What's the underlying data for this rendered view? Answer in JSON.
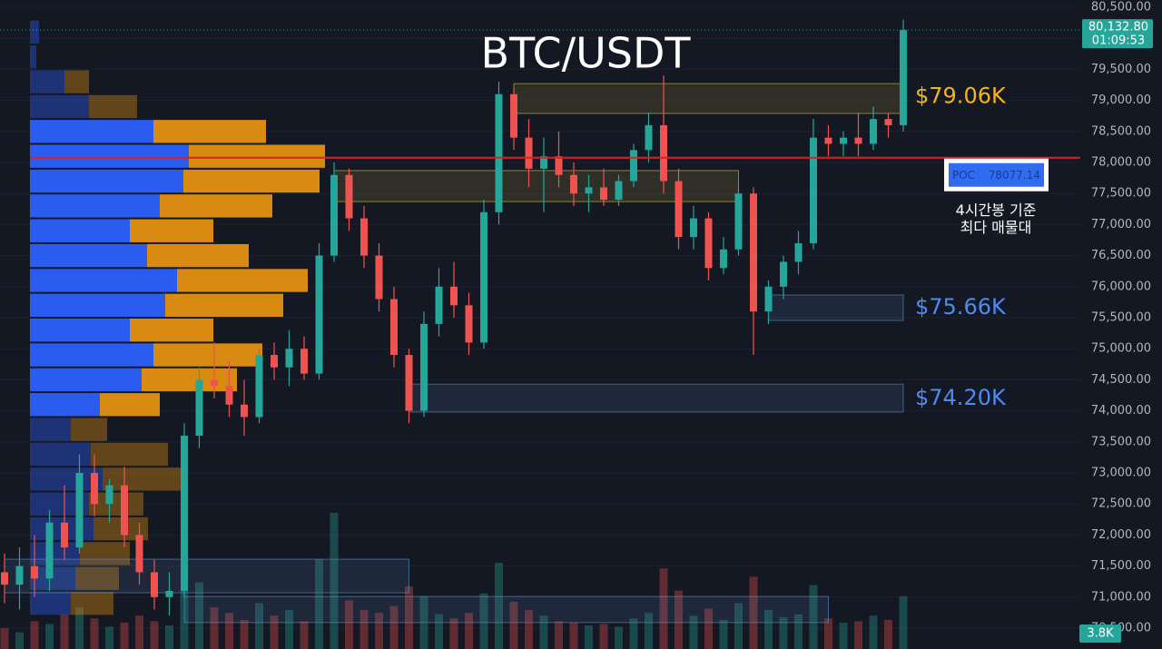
{
  "chart_data": {
    "type": "candlestick",
    "title": "BTC/USDT",
    "ylim": [
      70164,
      80617
    ],
    "yticks": [
      {
        "value": 70500,
        "label": "70,500.00"
      },
      {
        "value": 71000,
        "label": "71,000.00"
      },
      {
        "value": 71500,
        "label": "71,500.00"
      },
      {
        "value": 72000,
        "label": "72,000.00"
      },
      {
        "value": 72500,
        "label": "72,500.00"
      },
      {
        "value": 73000,
        "label": "73,000.00"
      },
      {
        "value": 73500,
        "label": "73,500.00"
      },
      {
        "value": 74000,
        "label": "74,000.00"
      },
      {
        "value": 74500,
        "label": "74,500.00"
      },
      {
        "value": 75000,
        "label": "75,000.00"
      },
      {
        "value": 75500,
        "label": "75,500.00"
      },
      {
        "value": 76000,
        "label": "76,000.00"
      },
      {
        "value": 76500,
        "label": "76,500.00"
      },
      {
        "value": 77000,
        "label": "77,000.00"
      },
      {
        "value": 77500,
        "label": "77,500.00"
      },
      {
        "value": 78000,
        "label": "78,000.00"
      },
      {
        "value": 78500,
        "label": "78,500.00"
      },
      {
        "value": 79000,
        "label": "79,000.00"
      },
      {
        "value": 79500,
        "label": "79,500.00"
      },
      {
        "value": 80000,
        "label": "80,000.00"
      },
      {
        "value": 80500,
        "label": "80,500.00"
      }
    ],
    "up_color": "#26a69a",
    "down_color": "#ef5350",
    "candles": [
      [
        71400,
        71700,
        70900,
        71200
      ],
      [
        71200,
        71800,
        70800,
        71500
      ],
      [
        71500,
        72000,
        71000,
        71300
      ],
      [
        71300,
        72400,
        71100,
        72200
      ],
      [
        72200,
        72800,
        71600,
        71800
      ],
      [
        71800,
        73300,
        71700,
        73000
      ],
      [
        73000,
        73300,
        72300,
        72500
      ],
      [
        72500,
        72900,
        72200,
        72800
      ],
      [
        72800,
        73100,
        71800,
        72000
      ],
      [
        72000,
        72200,
        71200,
        71400
      ],
      [
        71400,
        71600,
        70800,
        71000
      ],
      [
        71000,
        71400,
        70700,
        71100
      ],
      [
        71100,
        73800,
        71000,
        73600
      ],
      [
        73600,
        74700,
        73400,
        74500
      ],
      [
        74500,
        75100,
        74200,
        74400
      ],
      [
        74400,
        74800,
        73900,
        74100
      ],
      [
        74100,
        74500,
        73600,
        73900
      ],
      [
        73900,
        75000,
        73800,
        74900
      ],
      [
        74900,
        75100,
        74500,
        74700
      ],
      [
        74700,
        75300,
        74400,
        75000
      ],
      [
        75000,
        75200,
        74500,
        74600
      ],
      [
        74600,
        76700,
        74500,
        76500
      ],
      [
        76500,
        78000,
        76400,
        77800
      ],
      [
        77800,
        77900,
        76900,
        77100
      ],
      [
        77100,
        77300,
        76300,
        76500
      ],
      [
        76500,
        76700,
        75600,
        75800
      ],
      [
        75800,
        76000,
        74700,
        74900
      ],
      [
        74900,
        75000,
        73800,
        74000
      ],
      [
        74000,
        75600,
        73900,
        75400
      ],
      [
        75400,
        76300,
        75200,
        76000
      ],
      [
        76000,
        76400,
        75500,
        75700
      ],
      [
        75700,
        75900,
        74900,
        75100
      ],
      [
        75100,
        77400,
        75000,
        77200
      ],
      [
        77200,
        79300,
        77000,
        79100
      ],
      [
        79100,
        79200,
        78200,
        78400
      ],
      [
        78400,
        78700,
        77600,
        77900
      ],
      [
        77900,
        78400,
        77200,
        78100
      ],
      [
        78100,
        78500,
        77600,
        77800
      ],
      [
        77800,
        78000,
        77300,
        77500
      ],
      [
        77500,
        77800,
        77200,
        77600
      ],
      [
        77600,
        77900,
        77300,
        77400
      ],
      [
        77400,
        77800,
        77300,
        77700
      ],
      [
        77700,
        78300,
        77600,
        78200
      ],
      [
        78200,
        78800,
        78000,
        78600
      ],
      [
        78600,
        79400,
        77500,
        77700
      ],
      [
        77700,
        77900,
        76600,
        76800
      ],
      [
        76800,
        77300,
        76600,
        77100
      ],
      [
        77100,
        77200,
        76100,
        76300
      ],
      [
        76300,
        76800,
        76200,
        76600
      ],
      [
        76600,
        77600,
        76500,
        77500
      ],
      [
        77500,
        77600,
        74900,
        75600
      ],
      [
        75600,
        76100,
        75400,
        76000
      ],
      [
        76000,
        76500,
        75800,
        76400
      ],
      [
        76400,
        76900,
        76200,
        76700
      ],
      [
        76700,
        78700,
        76600,
        78400
      ],
      [
        78400,
        78600,
        78100,
        78300
      ],
      [
        78300,
        78500,
        78100,
        78400
      ],
      [
        78400,
        78800,
        78100,
        78300
      ],
      [
        78300,
        78900,
        78200,
        78700
      ],
      [
        78700,
        78800,
        78400,
        78600
      ],
      [
        78600,
        80300,
        78500,
        80132.8
      ]
    ],
    "volume": [
      1500,
      1200,
      2000,
      1800,
      2500,
      3000,
      2200,
      1600,
      1900,
      2400,
      2000,
      1700,
      4200,
      4800,
      3000,
      2600,
      2100,
      3300,
      2400,
      2800,
      2000,
      6500,
      9800,
      3500,
      2800,
      2600,
      3100,
      4500,
      3800,
      2500,
      2200,
      2600,
      4000,
      6200,
      3400,
      2800,
      2400,
      2000,
      1900,
      1700,
      1800,
      1600,
      2200,
      2600,
      5800,
      4200,
      2400,
      2900,
      2100,
      3300,
      5200,
      2800,
      2300,
      2500,
      4600,
      2200,
      1900,
      2000,
      2400,
      2100,
      3800
    ],
    "volume_label": {
      "value": 3800,
      "label": "3.8K"
    },
    "last_price": {
      "value": 80132.8,
      "label": "80,132.80"
    },
    "countdown": "01:09:53",
    "volume_profile": {
      "row_top": 80300,
      "row_size": 400,
      "value_area": [
        73900,
        78700
      ],
      "buy_color": "#2a5cf0",
      "sell_color": "#d98a10",
      "rows": [
        [
          10,
          0
        ],
        [
          7,
          0
        ],
        [
          38,
          27
        ],
        [
          65,
          53
        ],
        [
          136,
          124
        ],
        [
          175,
          150
        ],
        [
          169,
          150
        ],
        [
          143,
          124
        ],
        [
          110,
          92
        ],
        [
          129,
          112
        ],
        [
          162,
          144
        ],
        [
          149,
          130
        ],
        [
          110,
          92
        ],
        [
          136,
          120
        ],
        [
          123,
          105
        ],
        [
          77,
          66
        ],
        [
          45,
          40
        ],
        [
          67,
          85
        ],
        [
          80,
          90
        ],
        [
          65,
          60
        ],
        [
          70,
          60
        ],
        [
          55,
          55
        ],
        [
          50,
          48
        ],
        [
          45,
          47
        ]
      ]
    },
    "poc": {
      "label": "POC",
      "value": 78077.14,
      "color": "#e01e1e"
    },
    "poc_note": [
      "4시간봉 기준",
      "최다 매물대"
    ],
    "zones": [
      {
        "from": 34,
        "to": 60,
        "low": 78790,
        "high": 79270,
        "color": "#d4c24a"
      },
      {
        "from": 22,
        "to": 49,
        "low": 77370,
        "high": 77870,
        "color": "#d4c24a"
      },
      {
        "from": 51,
        "to": 60,
        "low": 75456,
        "high": 75866,
        "color": "#5b8fc7"
      },
      {
        "from": 27,
        "to": 60,
        "low": 73980,
        "high": 74430,
        "color": "#5b8fc7"
      },
      {
        "from": 0,
        "to": 27,
        "low": 71070,
        "high": 71610,
        "color": "#5b8fc7"
      },
      {
        "from": 12,
        "to": 55,
        "low": 70590,
        "high": 71010,
        "color": "#5b8fc7"
      }
    ],
    "annotations": [
      {
        "text": "$79.06K",
        "value": 79060,
        "color": "#f3b51f"
      },
      {
        "text": "$75.66K",
        "value": 75660,
        "color": "#4c8bf5"
      },
      {
        "text": "$74.20K",
        "value": 74200,
        "color": "#4c8bf5"
      }
    ]
  }
}
